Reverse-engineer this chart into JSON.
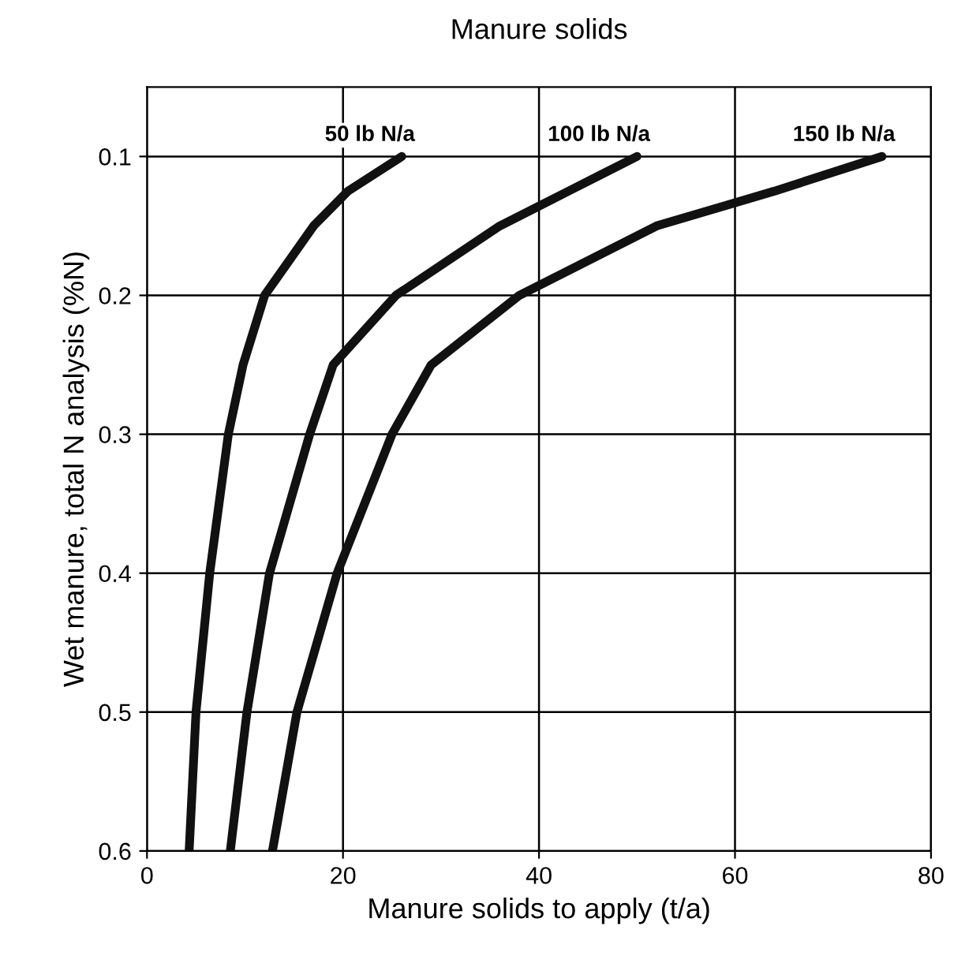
{
  "chart_data": {
    "type": "line",
    "title": "Manure solids",
    "xlabel": "Manure solids to apply (t/a)",
    "ylabel": "Wet manure, total N analysis (%N)",
    "xlim": [
      0,
      80
    ],
    "ylim": [
      0.6,
      0.05
    ],
    "xticks": [
      0,
      20,
      40,
      60,
      80
    ],
    "yticks": [
      0.1,
      0.2,
      0.3,
      0.4,
      0.5,
      0.6
    ],
    "grid": true,
    "legend": false,
    "marker": "none",
    "line_style": "solid",
    "series": [
      {
        "name": "50 lb N/a",
        "color": "#111111",
        "x": [
          26,
          20.5,
          17,
          12,
          9.8,
          8.3,
          6.4,
          5,
          4.3
        ],
        "values": [
          0.1,
          0.125,
          0.15,
          0.2,
          0.25,
          0.3,
          0.4,
          0.5,
          0.6
        ]
      },
      {
        "name": "100 lb N/a",
        "color": "#111111",
        "x": [
          50,
          43,
          36,
          25.4,
          19,
          16.6,
          12.5,
          10.2,
          8.5
        ],
        "values": [
          0.1,
          0.125,
          0.15,
          0.2,
          0.25,
          0.3,
          0.4,
          0.5,
          0.6
        ]
      },
      {
        "name": "150 lb N/a",
        "color": "#111111",
        "x": [
          75,
          64,
          52,
          38,
          29,
          25,
          19.4,
          15.3,
          12.8
        ],
        "values": [
          0.1,
          0.125,
          0.15,
          0.2,
          0.25,
          0.3,
          0.4,
          0.5,
          0.6
        ]
      }
    ]
  }
}
